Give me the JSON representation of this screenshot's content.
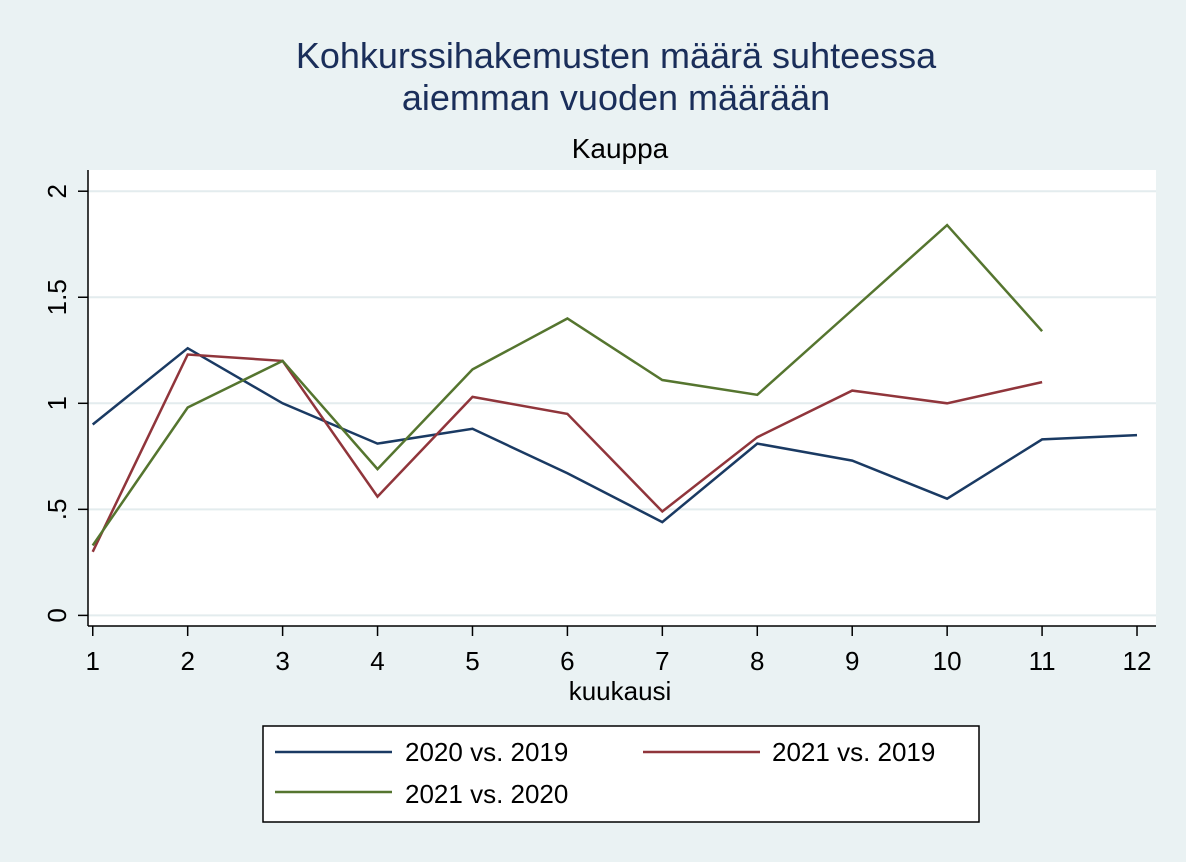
{
  "chart_data": {
    "type": "line",
    "title_lines": [
      "Kohkurssihakemusten määrä suhteessa",
      "aiemman vuoden määrään"
    ],
    "subtitle": "Kauppa",
    "xlabel": "kuukausi",
    "ylabel": "",
    "x": [
      1,
      2,
      3,
      4,
      5,
      6,
      7,
      8,
      9,
      10,
      11,
      12
    ],
    "x_tick_labels": [
      "1",
      "2",
      "3",
      "4",
      "5",
      "6",
      "7",
      "8",
      "9",
      "10",
      "11",
      "12"
    ],
    "y_ticks": [
      0,
      0.5,
      1,
      1.5,
      2
    ],
    "y_tick_labels": [
      "0",
      ".5",
      "1",
      "1.5",
      "2"
    ],
    "xlim": [
      0.95,
      12.2
    ],
    "ylim": [
      -0.05,
      2.1
    ],
    "grid": "horizontal",
    "legend_position": "bottom",
    "series": [
      {
        "name": "2020 vs. 2019",
        "color": "#1a3a63",
        "values": [
          0.9,
          1.26,
          1.0,
          0.81,
          0.88,
          0.67,
          0.44,
          0.81,
          0.73,
          0.55,
          0.83,
          0.85
        ]
      },
      {
        "name": "2021 vs. 2019",
        "color": "#90353b",
        "values": [
          0.3,
          1.23,
          1.2,
          0.56,
          1.03,
          0.95,
          0.49,
          0.84,
          1.06,
          1.0,
          1.1,
          null
        ]
      },
      {
        "name": "2021 vs. 2020",
        "color": "#55752f",
        "values": [
          0.33,
          0.98,
          1.2,
          0.69,
          1.16,
          1.4,
          1.11,
          1.04,
          1.44,
          1.84,
          1.34,
          null
        ]
      }
    ]
  }
}
